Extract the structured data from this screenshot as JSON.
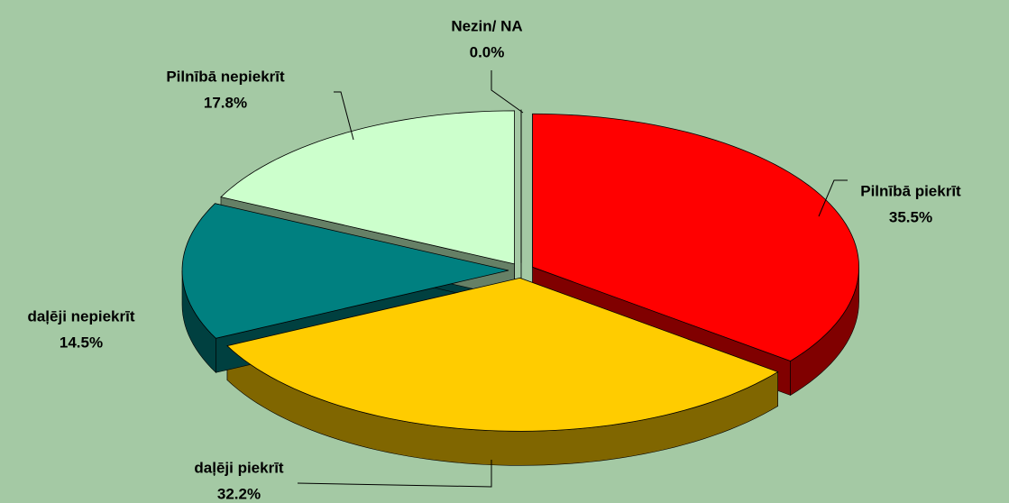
{
  "chart_data": {
    "type": "pie",
    "three_d": true,
    "exploded": true,
    "categories": [
      "Pilnībā piekrīt",
      "daļēji piekrīt",
      "daļēji nepiekrīt",
      "Pilnībā nepiekrīt",
      "Nezin/ NA"
    ],
    "values": [
      35.5,
      32.2,
      14.5,
      17.8,
      0.0
    ],
    "value_labels": [
      "35.5%",
      "32.2%",
      "14.5%",
      "17.8%",
      "0.0%"
    ],
    "colors": [
      "#ff0000",
      "#ffcc00",
      "#008080",
      "#ccffcc",
      "#c0c0c0"
    ]
  }
}
